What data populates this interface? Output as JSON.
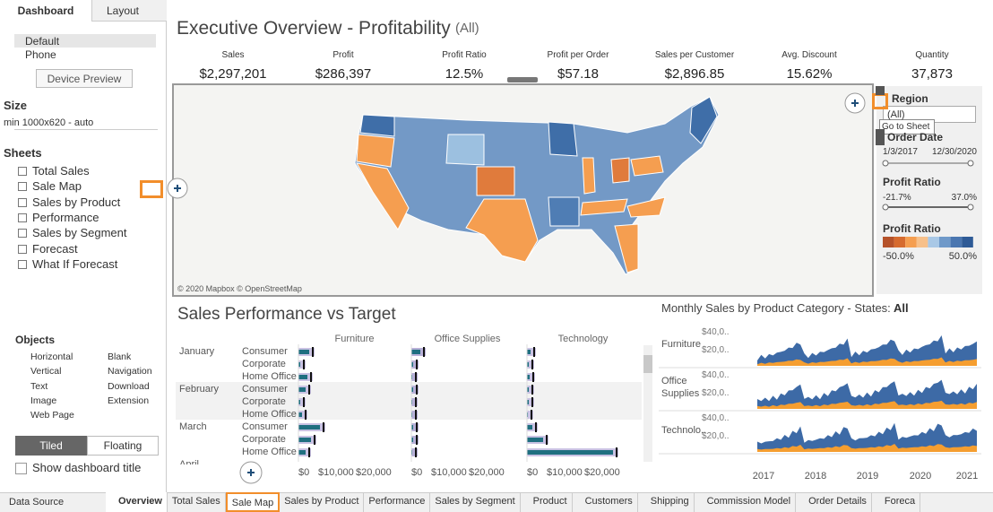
{
  "left_panel": {
    "tabs": [
      "Dashboard",
      "Layout"
    ],
    "devices": [
      "Default",
      "Phone"
    ],
    "device_preview": "Device Preview",
    "size_heading": "Size",
    "size_value": "min 1000x620 - auto",
    "sheets_heading": "Sheets",
    "sheets": [
      "Total Sales",
      "Sale Map",
      "Sales by Product",
      "Performance",
      "Sales by Segment",
      "Forecast",
      "What If Forecast"
    ],
    "objects_heading": "Objects",
    "objects": [
      "Horizontal",
      "Blank",
      "Vertical",
      "Navigation",
      "Text",
      "Download",
      "Image",
      "Extension",
      "Web Page"
    ],
    "layout_modes": [
      "Tiled",
      "Floating"
    ],
    "show_title": "Show dashboard title"
  },
  "dashboard": {
    "title": "Executive Overview - Profitability",
    "title_filter": "(All)",
    "kpis": [
      {
        "label": "Sales",
        "value": "$2,297,201"
      },
      {
        "label": "Profit",
        "value": "$286,397"
      },
      {
        "label": "Profit Ratio",
        "value": "12.5%"
      },
      {
        "label": "Profit per Order",
        "value": "$57.18"
      },
      {
        "label": "Sales per Customer",
        "value": "$2,896.85"
      },
      {
        "label": "Avg. Discount",
        "value": "15.62%"
      },
      {
        "label": "Quantity",
        "value": "37,873"
      }
    ],
    "map_attribution": "© 2020 Mapbox © OpenStreetMap",
    "filters": {
      "region_label": "Region",
      "region_value": "(All)",
      "tooltip": "Go to Sheet",
      "order_date_label": "Order Date",
      "order_date_range": [
        "1/3/2017",
        "12/30/2020"
      ],
      "profit_ratio_label": "Profit Ratio",
      "profit_ratio_range": [
        "-21.7%",
        "37.0%"
      ],
      "legend_label": "Profit Ratio",
      "legend_range": [
        "-50.0%",
        "50.0%"
      ]
    },
    "performance": {
      "title": "Sales Performance vs Target",
      "columns": [
        "Furniture",
        "Office Supplies",
        "Technology"
      ],
      "months": [
        "January",
        "February",
        "March",
        "April"
      ],
      "segments": [
        "Consumer",
        "Corporate",
        "Home Office"
      ],
      "axis_ticks": [
        "$0",
        "$10,000",
        "$20,000"
      ]
    },
    "monthly": {
      "title": "Monthly Sales by Product Category - States: ",
      "state": "All",
      "categories": [
        "Furniture",
        "Office Supplies",
        "Technolo.."
      ],
      "axis_ticks": [
        "$40,0..",
        "$20,0.."
      ],
      "years": [
        "2017",
        "2018",
        "2019",
        "2020",
        "2021"
      ]
    }
  },
  "bottom_tabs": {
    "data_source": "Data Source",
    "sheets": [
      "Overview",
      "Total Sales",
      "Sale Map",
      "Sales by Product",
      "Performance",
      "Sales by Segment",
      "Product",
      "Customers",
      "Shipping",
      "Commission Model",
      "Order Details",
      "Foreca"
    ]
  }
}
